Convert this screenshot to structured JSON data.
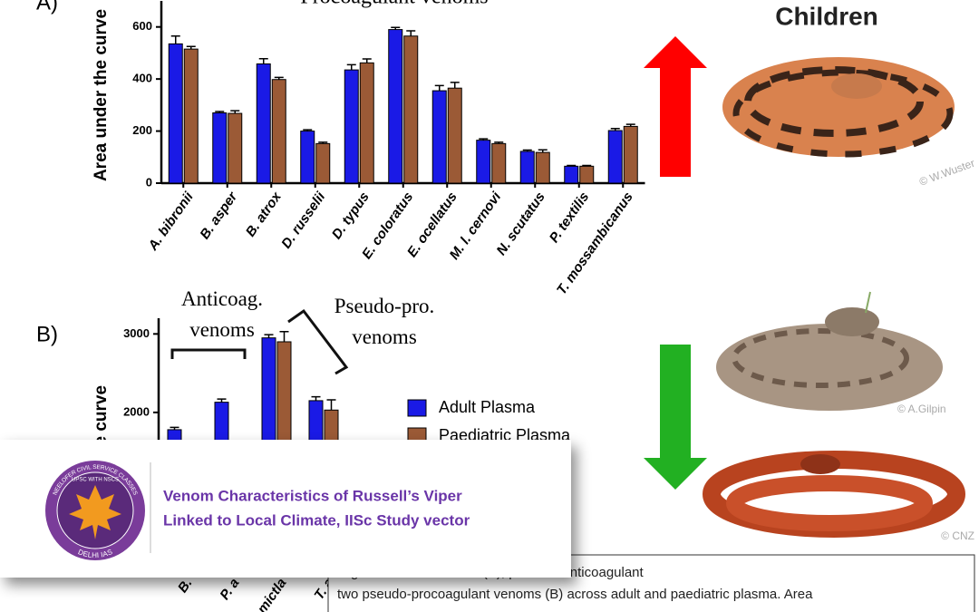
{
  "chart_data": [
    {
      "type": "bar",
      "panel": "A)",
      "title": "Procoagulant venoms",
      "y_label": "Area under the curve",
      "categories": [
        "A. bibronii",
        "B. asper",
        "B. atrox",
        "D. russelii",
        "D. typus",
        "E. coloratus",
        "E. ocellatus",
        "M. l. cernovi",
        "N. scutatus",
        "P. textilis",
        "T. mossambicanus"
      ],
      "series": [
        {
          "name": "Adult Plasma",
          "color": "#1a1ae6",
          "values": [
            535,
            270,
            458,
            200,
            435,
            590,
            355,
            165,
            122,
            65,
            202
          ],
          "errors": [
            30,
            5,
            20,
            5,
            20,
            8,
            20,
            5,
            5,
            3,
            8
          ]
        },
        {
          "name": "Paediatric Plasma",
          "color": "#9b5a36",
          "values": [
            515,
            268,
            398,
            152,
            462,
            565,
            365,
            152,
            118,
            65,
            218
          ],
          "errors": [
            10,
            10,
            8,
            5,
            15,
            20,
            22,
            5,
            10,
            3,
            8
          ]
        }
      ],
      "ylim": [
        0,
        700
      ],
      "yticks": [
        0,
        200,
        400,
        600
      ]
    },
    {
      "type": "bar",
      "panel": "B)",
      "y_label": "Area under the curve",
      "annotations": [
        "Anticoag. venoms",
        "Pseudo-pro. venoms"
      ],
      "categories": [
        "B.",
        "P. a",
        "mictla",
        "T. a"
      ],
      "series": [
        {
          "name": "Adult Plasma",
          "color": "#1a1ae6",
          "values": [
            1780,
            2130,
            2950,
            2150
          ],
          "errors": [
            30,
            40,
            40,
            50
          ]
        },
        {
          "name": "Paediatric Plasma",
          "color": "#9b5a36",
          "values": [
            null,
            null,
            2900,
            2030
          ],
          "errors": [
            null,
            null,
            130,
            130
          ]
        }
      ],
      "ylim": [
        0,
        3200
      ],
      "yticks": [
        2000,
        3000
      ],
      "legend": "right"
    }
  ],
  "side": {
    "heading": "Children",
    "credits": [
      "© W.Wuster",
      "© A.Gilpin",
      "© CNZ"
    ]
  },
  "banner": {
    "logo_top": "NEELOFER CIVIL SERVICE CLASSES",
    "logo_mid": "UPSC WITH NSCS",
    "logo_bottom": "DELHI IAS",
    "title_lines": [
      "Venom Characteristics of Russell’s Viper",
      "Linked to Local Climate, IISc Study vector"
    ]
  },
  "caption": {
    "lines": [
      "…gulant snake venoms (A), plus two anticoagulant",
      "two pseudo-procoagulant venoms (B) across adult and paediatric plasma. Area"
    ]
  }
}
